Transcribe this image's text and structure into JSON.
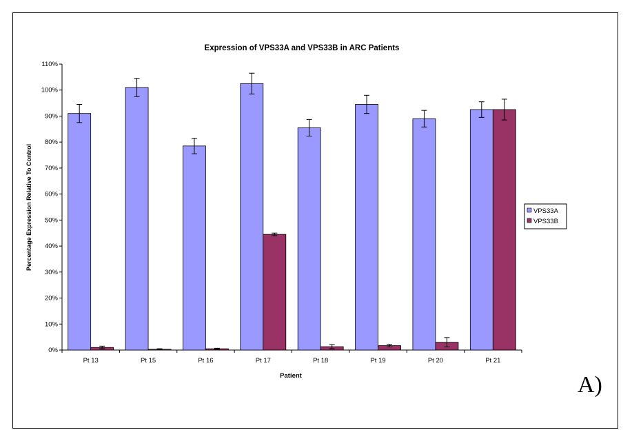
{
  "chart_data": {
    "type": "bar",
    "title": "Expression of VPS33A and VPS33B in ARC Patients",
    "xlabel": "Patient",
    "ylabel": "Percentage Expression Relative To Control",
    "categories": [
      "Pt 13",
      "Pt 15",
      "Pt 16",
      "Pt 17",
      "Pt 18",
      "Pt 19",
      "Pt 20",
      "Pt 21"
    ],
    "series": [
      {
        "name": "VPS33A",
        "color": "#9999ff",
        "values": [
          91,
          101,
          78.5,
          102.5,
          85.5,
          94.5,
          89,
          92.5
        ],
        "errors": [
          3.5,
          3.5,
          3,
          4,
          3.2,
          3.5,
          3.2,
          3
        ]
      },
      {
        "name": "VPS33B",
        "color": "#993366",
        "values": [
          1,
          0.3,
          0.5,
          44.5,
          1.3,
          1.7,
          3,
          92.5
        ],
        "errors": [
          0.5,
          0.2,
          0.2,
          0.5,
          0.8,
          0.5,
          1.8,
          4
        ]
      }
    ],
    "ylim": [
      0,
      110
    ],
    "yticks": [
      0,
      10,
      20,
      30,
      40,
      50,
      60,
      70,
      80,
      90,
      100,
      110
    ],
    "ytick_labels": [
      "0%",
      "10%",
      "20%",
      "30%",
      "40%",
      "50%",
      "60%",
      "70%",
      "80%",
      "90%",
      "100%",
      "110%"
    ],
    "legend_position": "right",
    "grid": false
  },
  "panel_label": "A)"
}
